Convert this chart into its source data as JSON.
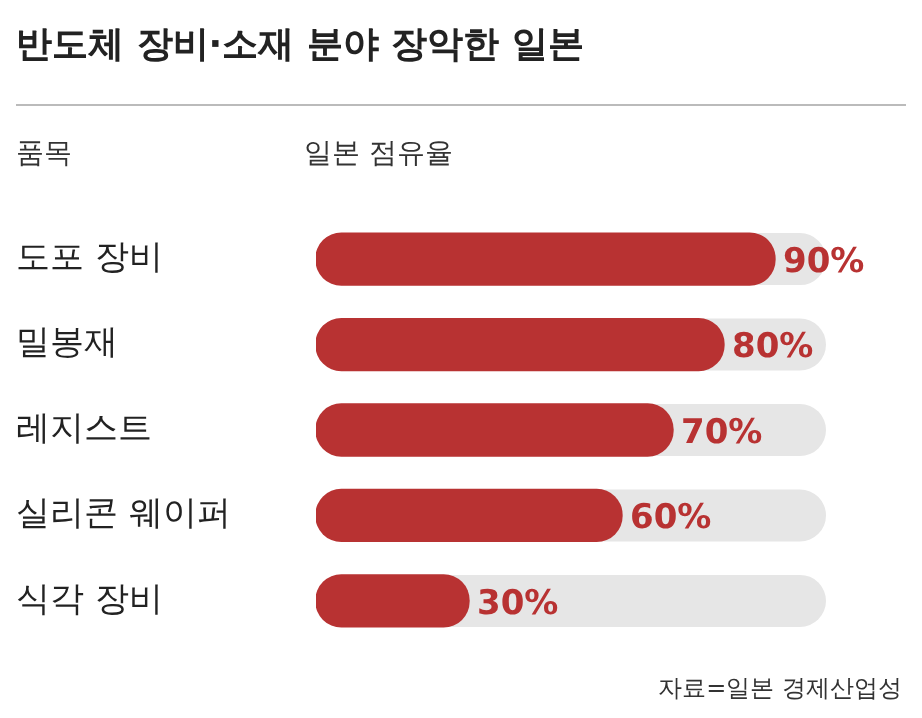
{
  "chart_data": {
    "type": "bar",
    "orientation": "horizontal",
    "title": "반도체 장비·소재 분야 장악한 일본",
    "ylabel": "품목",
    "xlabel": "일본 점유율",
    "categories": [
      "도포 장비",
      "밀봉재",
      "레지스트",
      "실리콘 웨이퍼",
      "식각 장비"
    ],
    "values": [
      90,
      80,
      70,
      60,
      30
    ],
    "value_labels": [
      "90%",
      "80%",
      "70%",
      "60%",
      "30%"
    ],
    "color": "#b83232",
    "tick_labels": "y",
    "annotations": [
      "자료=일본 경제산업성"
    ]
  }
}
